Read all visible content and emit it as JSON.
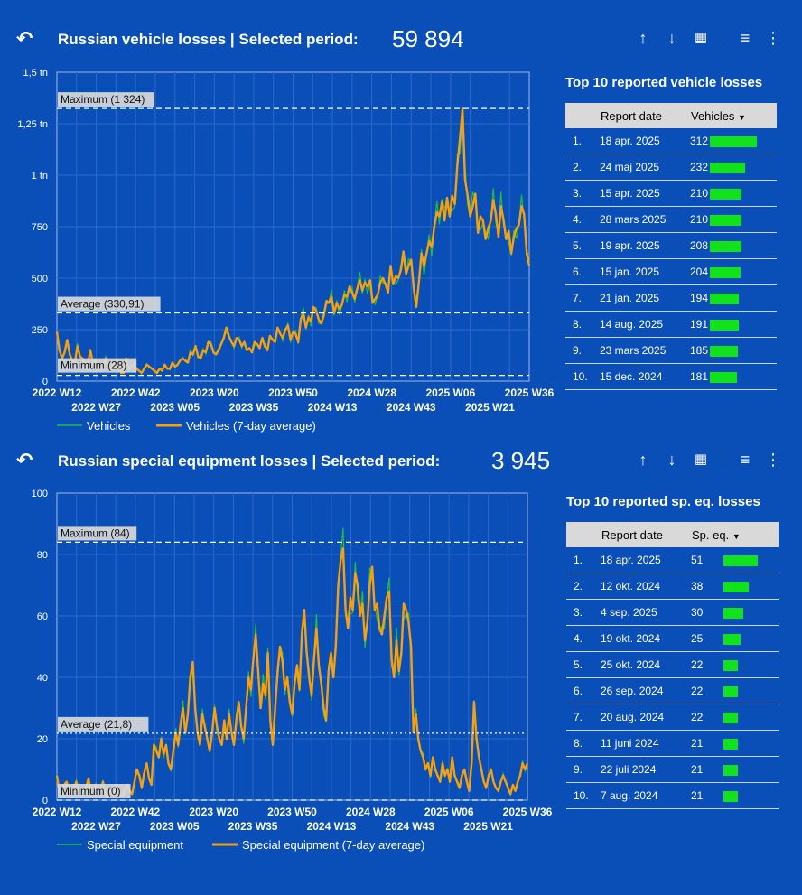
{
  "vehicles": {
    "header": {
      "undo_icon": "undo-icon",
      "title": "Russian vehicle losses | Selected period:",
      "total": "59 894"
    },
    "chart_data": {
      "type": "line",
      "title": "",
      "y_ticks": [
        "0",
        "250",
        "500",
        "750",
        "1 tn",
        "1,25 tn",
        "1,5 tn"
      ],
      "ylim": [
        0,
        1500
      ],
      "x_ticks_top": [
        "2022 W12",
        "2022 W42",
        "2023 W20",
        "2023 W50",
        "2024 W28",
        "2025 W06",
        "2025 W36"
      ],
      "x_ticks_bottom": [
        "2022 W27",
        "2023 W05",
        "2023 W35",
        "2024 W13",
        "2024 W43",
        "2025 W21"
      ],
      "reference_lines": [
        {
          "label": "Maximum (1 324)",
          "value": 1324
        },
        {
          "label": "Average (330,91)",
          "value": 330.91
        },
        {
          "label": "Minimum (28)",
          "value": 28
        }
      ],
      "legend": [
        "Vehicles",
        "Vehicles (7-day average)"
      ],
      "colors": {
        "raw": "#1fbf3a",
        "avg": "#f4a00f"
      },
      "series": [
        {
          "name": "Vehicles (7-day average)",
          "values": [
            240,
            150,
            110,
            140,
            200,
            130,
            100,
            90,
            170,
            120,
            110,
            90,
            80,
            150,
            90,
            100,
            70,
            60,
            80,
            110,
            70,
            50,
            90,
            70,
            80,
            40,
            40,
            110,
            60,
            70,
            80,
            60,
            50,
            40,
            60,
            80,
            70,
            60,
            50,
            40,
            60,
            50,
            80,
            60,
            60,
            90,
            70,
            80,
            100,
            110,
            100,
            90,
            140,
            130,
            170,
            120,
            110,
            150,
            140,
            190,
            180,
            140,
            130,
            150,
            180,
            210,
            260,
            220,
            190,
            170,
            210,
            200,
            170,
            190,
            150,
            160,
            140,
            190,
            180,
            160,
            210,
            170,
            150,
            220,
            200,
            190,
            260,
            230,
            210,
            250,
            270,
            200,
            240,
            230,
            190,
            300,
            330,
            260,
            310,
            290,
            360,
            340,
            300,
            280,
            320,
            390,
            380,
            410,
            330,
            380,
            350,
            370,
            420,
            410,
            460,
            430,
            400,
            450,
            490,
            440,
            480,
            460,
            490,
            380,
            400,
            420,
            480,
            500,
            470,
            430,
            560,
            470,
            510,
            500,
            540,
            630,
            520,
            560,
            590,
            450,
            360,
            480,
            620,
            560,
            620,
            680,
            650,
            750,
            820,
            800,
            870,
            780,
            890,
            800,
            900,
            860,
            1050,
            1180,
            1324,
            980,
            900,
            800,
            850,
            910,
            720,
            800,
            780,
            690,
            740,
            780,
            880,
            810,
            700,
            850,
            780,
            690,
            730,
            620,
            700,
            740,
            760,
            850,
            810,
            620,
            560
          ]
        }
      ]
    },
    "table": {
      "title": "Top 10 reported vehicle losses",
      "columns": [
        "",
        "Report date",
        "Vehicles"
      ],
      "sort_icon": "sort-desc-icon",
      "rows": [
        {
          "rank": "1.",
          "date": "18 apr. 2025",
          "value": "312"
        },
        {
          "rank": "2.",
          "date": "24 maj 2025",
          "value": "232"
        },
        {
          "rank": "3.",
          "date": "15 apr. 2025",
          "value": "210"
        },
        {
          "rank": "4.",
          "date": "28 mars 2025",
          "value": "210"
        },
        {
          "rank": "5.",
          "date": "19 apr. 2025",
          "value": "208"
        },
        {
          "rank": "6.",
          "date": "15 jan. 2025",
          "value": "204"
        },
        {
          "rank": "7.",
          "date": "21 jan. 2025",
          "value": "194"
        },
        {
          "rank": "8.",
          "date": "14 aug. 2025",
          "value": "191"
        },
        {
          "rank": "9.",
          "date": "23 mars 2025",
          "value": "185"
        },
        {
          "rank": "10.",
          "date": "15 dec. 2024",
          "value": "181"
        }
      ]
    }
  },
  "equipment": {
    "header": {
      "undo_icon": "undo-icon",
      "title": "Russian special equipment losses | Selected period:",
      "total": "3 945"
    },
    "chart_data": {
      "type": "line",
      "title": "",
      "y_ticks": [
        "0",
        "20",
        "40",
        "60",
        "80",
        "100"
      ],
      "ylim": [
        0,
        100
      ],
      "x_ticks_top": [
        "2022 W12",
        "2022 W42",
        "2023 W20",
        "2023 W50",
        "2024 W28",
        "2025 W06",
        "2025 W36"
      ],
      "x_ticks_bottom": [
        "2022 W27",
        "2023 W05",
        "2023 W35",
        "2024 W13",
        "2024 W43",
        "2025 W21"
      ],
      "reference_lines": [
        {
          "label": "Maximum (84)",
          "value": 84
        },
        {
          "label": "Average (21,8)",
          "value": 21.8
        },
        {
          "label": "Minimum (0)",
          "value": 0
        }
      ],
      "legend": [
        "Special equipment",
        "Special equipment (7-day average)"
      ],
      "colors": {
        "raw": "#1fbf3a",
        "avg": "#f4a00f"
      },
      "series": [
        {
          "name": "Special equipment (7-day average)",
          "values": [
            8,
            3,
            2,
            5,
            6,
            3,
            2,
            4,
            6,
            3,
            2,
            3,
            4,
            7,
            3,
            2,
            5,
            4,
            3,
            6,
            2,
            1,
            3,
            2,
            4,
            3,
            2,
            1,
            4,
            5,
            3,
            2,
            6,
            10,
            8,
            4,
            9,
            12,
            7,
            5,
            18,
            16,
            14,
            20,
            15,
            18,
            12,
            10,
            16,
            22,
            18,
            25,
            30,
            22,
            28,
            40,
            45,
            30,
            22,
            18,
            28,
            24,
            20,
            16,
            22,
            30,
            24,
            20,
            18,
            26,
            20,
            28,
            22,
            18,
            26,
            32,
            24,
            20,
            30,
            40,
            36,
            46,
            54,
            42,
            30,
            38,
            34,
            48,
            26,
            18,
            30,
            42,
            50,
            45,
            36,
            40,
            32,
            28,
            38,
            44,
            36,
            54,
            62,
            48,
            40,
            34,
            46,
            56,
            44,
            38,
            30,
            26,
            42,
            48,
            40,
            50,
            70,
            78,
            82,
            62,
            56,
            66,
            62,
            74,
            70,
            60,
            64,
            52,
            58,
            70,
            76,
            62,
            64,
            56,
            54,
            60,
            66,
            68,
            46,
            40,
            52,
            42,
            48,
            64,
            62,
            58,
            50,
            22,
            28,
            20,
            16,
            14,
            10,
            12,
            8,
            14,
            10,
            8,
            6,
            12,
            8,
            10,
            6,
            14,
            8,
            6,
            4,
            8,
            10,
            6,
            3,
            12,
            32,
            20,
            14,
            10,
            6,
            4,
            8,
            10,
            6,
            4,
            3,
            6,
            8,
            6,
            4,
            2,
            5,
            3,
            6,
            8,
            12,
            10,
            12
          ]
        }
      ]
    },
    "table": {
      "title": "Top 10 reported sp. eq. losses",
      "columns": [
        "",
        "Report date",
        "Sp. eq."
      ],
      "sort_icon": "sort-desc-icon",
      "rows": [
        {
          "rank": "1.",
          "date": "18 apr. 2025",
          "value": "51"
        },
        {
          "rank": "2.",
          "date": "12 okt. 2024",
          "value": "38"
        },
        {
          "rank": "3.",
          "date": "4 sep. 2025",
          "value": "30"
        },
        {
          "rank": "4.",
          "date": "19 okt. 2024",
          "value": "25"
        },
        {
          "rank": "5.",
          "date": "25 okt. 2024",
          "value": "22"
        },
        {
          "rank": "6.",
          "date": "26 sep. 2024",
          "value": "22"
        },
        {
          "rank": "7.",
          "date": "20 aug. 2024",
          "value": "22"
        },
        {
          "rank": "8.",
          "date": "11 juni 2024",
          "value": "21"
        },
        {
          "rank": "9.",
          "date": "22 juli 2024",
          "value": "21"
        },
        {
          "rank": "10.",
          "date": "7 aug. 2024",
          "value": "21"
        }
      ]
    }
  },
  "toolbar_icons": [
    "arrow-up-icon",
    "arrow-down-icon",
    "chart-settings-icon",
    "filter-icon",
    "more-vert-icon"
  ]
}
